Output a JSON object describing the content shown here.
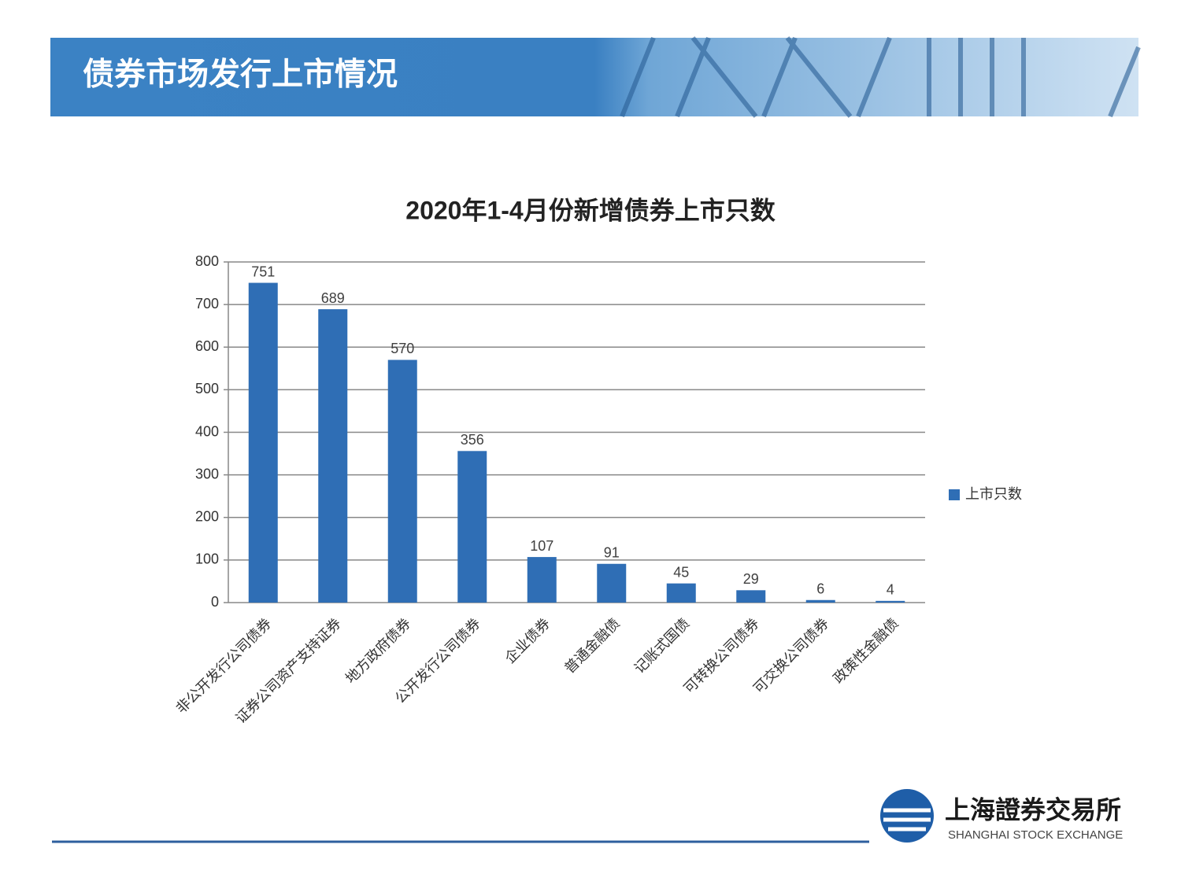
{
  "header": {
    "title": "债券市场发行上市情况"
  },
  "logo": {
    "name": "上海證券交易所",
    "english": "SHANGHAI STOCK EXCHANGE"
  },
  "chart_data": {
    "type": "bar",
    "title": "2020年1-4月份新增债券上市只数",
    "categories": [
      "非公开发行公司债券",
      "证券公司资产支持证券",
      "地方政府债券",
      "公开发行公司债券",
      "企业债券",
      "普通金融债",
      "记账式国债",
      "可转换公司债券",
      "可交换公司债券",
      "政策性金融债"
    ],
    "series": [
      {
        "name": "上市只数",
        "color": "#2f6eb5",
        "values": [
          751,
          689,
          570,
          356,
          107,
          91,
          45,
          29,
          6,
          4
        ]
      }
    ],
    "ylim": [
      0,
      800
    ],
    "yticks": [
      0,
      100,
      200,
      300,
      400,
      500,
      600,
      700,
      800
    ],
    "grid": true,
    "legend": "right"
  }
}
